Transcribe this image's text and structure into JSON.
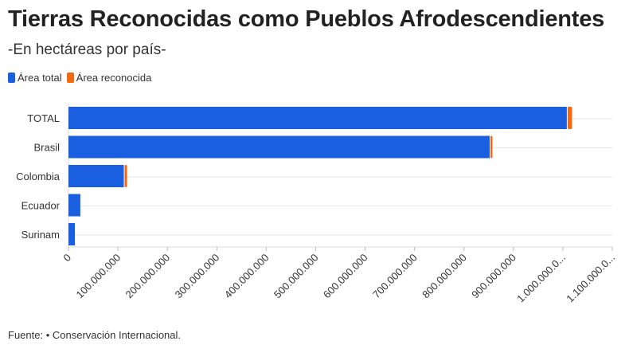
{
  "header": {
    "title": "Tierras Reconocidas como Pueblos Afrodescendientes",
    "subtitle": "-En hectáreas por país-"
  },
  "legend": [
    {
      "label": "Área total",
      "color": "#1a5fe0"
    },
    {
      "label": "Área reconocida",
      "color": "#f26a11"
    }
  ],
  "footer": {
    "source": "Fuente: • Conservación Internacional."
  },
  "chart_data": {
    "type": "bar",
    "orientation": "horizontal",
    "stacked": true,
    "categories": [
      "TOTAL",
      "Brasil",
      "Colombia",
      "Ecuador",
      "Surinam"
    ],
    "series": [
      {
        "name": "Área total",
        "color": "#1a5fe0",
        "values": [
          1008000000,
          852000000,
          112000000,
          24000000,
          13000000
        ]
      },
      {
        "name": "Área reconocida",
        "color": "#f26a11",
        "values": [
          9000000,
          3000000,
          5000000,
          0,
          0
        ]
      }
    ],
    "xlim": [
      0,
      1100000000
    ],
    "xticks": [
      0,
      100000000,
      200000000,
      300000000,
      400000000,
      500000000,
      600000000,
      700000000,
      800000000,
      900000000,
      1000000000,
      1100000000
    ],
    "xtick_labels": [
      "0",
      "100.000.000",
      "200.000.000",
      "300.000.000",
      "400.000.000",
      "500.000.000",
      "600.000.000",
      "700.000.000",
      "800.000.000",
      "900.000.000",
      "1.000.000.0...",
      "1.100.000.0..."
    ],
    "grid": true,
    "legend_position": "top-left"
  }
}
